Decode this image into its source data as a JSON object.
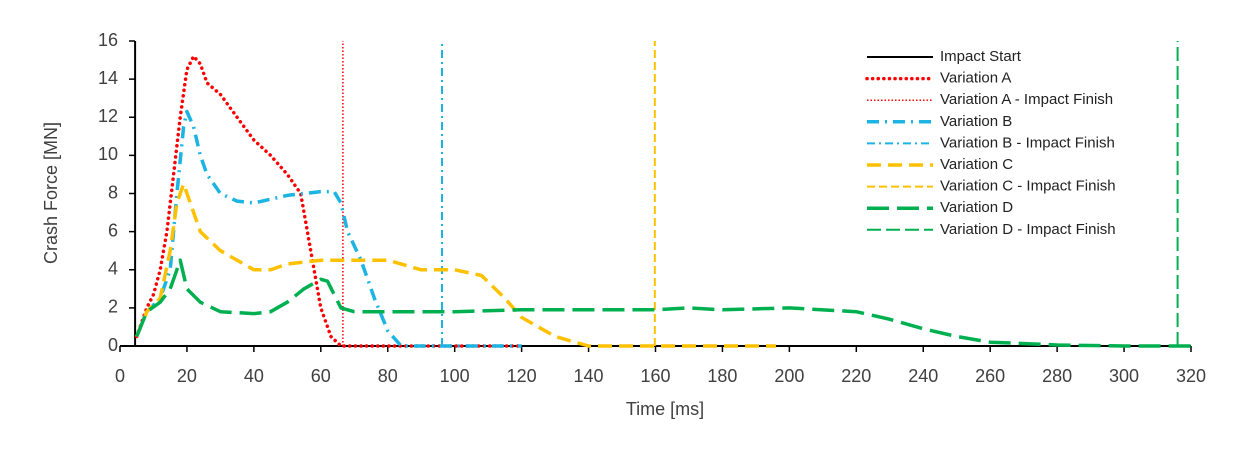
{
  "chart_data": {
    "type": "line",
    "x_label": "Time [ms]",
    "y_label": "Crash Force [MN]",
    "xlim": [
      0,
      320
    ],
    "xticks": [
      0,
      20,
      40,
      60,
      80,
      100,
      120,
      140,
      160,
      180,
      200,
      220,
      240,
      260,
      280,
      300,
      320
    ],
    "ylim": [
      0,
      16
    ],
    "yticks": [
      0,
      2,
      4,
      6,
      8,
      10,
      12,
      14,
      16
    ],
    "grid": false,
    "legend": "right",
    "series": [
      {
        "name": "Impact Start",
        "color": "#000000",
        "dash": "solid",
        "x": [
          4.5,
          4.5
        ],
        "values": [
          0,
          16
        ]
      },
      {
        "name": "Variation A",
        "color": "#ff0000",
        "dash": "round-dot",
        "x": [
          5,
          8,
          10,
          12,
          14,
          16,
          18,
          20,
          22,
          24,
          26,
          28,
          30,
          35,
          40,
          45,
          50,
          54,
          56,
          58,
          60,
          63,
          66,
          80,
          100,
          120
        ],
        "values": [
          0.5,
          2,
          2.7,
          4,
          6,
          9,
          12,
          14.5,
          15.2,
          14.8,
          13.8,
          13.5,
          13.2,
          12,
          10.8,
          10,
          9,
          8,
          6,
          4,
          2,
          0.5,
          0,
          0,
          0,
          0
        ]
      },
      {
        "name": "Variation A - Impact Finish",
        "color": "#ff0000",
        "dash": "fine-dot",
        "x": [
          66.6,
          66.6
        ],
        "values": [
          0,
          16
        ]
      },
      {
        "name": "Variation B",
        "color": "#1cb4e3",
        "dash": "dash-dot",
        "x": [
          5,
          8,
          12,
          15,
          17,
          19,
          20,
          22,
          24,
          26,
          30,
          35,
          40,
          45,
          50,
          55,
          60,
          64,
          66,
          68,
          72,
          76,
          80,
          84,
          100,
          120
        ],
        "values": [
          0.5,
          1.8,
          2.5,
          4,
          8,
          11.5,
          12.3,
          11.5,
          10,
          9,
          8,
          7.6,
          7.5,
          7.7,
          7.9,
          8,
          8.1,
          8.1,
          7.5,
          6,
          4.5,
          2.5,
          0.8,
          0,
          0,
          0
        ]
      },
      {
        "name": "Variation B - Impact Finish",
        "color": "#1cb4e3",
        "dash": "fine-dash-dot",
        "x": [
          96.2,
          96.2
        ],
        "values": [
          0,
          16
        ]
      },
      {
        "name": "Variation C",
        "color": "#ffc000",
        "dash": "dash",
        "x": [
          5,
          8,
          12,
          15,
          17,
          19,
          21,
          24,
          30,
          40,
          45,
          50,
          60,
          70,
          80,
          90,
          100,
          108,
          115,
          120,
          130,
          140,
          160,
          196
        ],
        "values": [
          0.5,
          1.8,
          2.5,
          5,
          7.5,
          8.5,
          7.5,
          6,
          5,
          4,
          4,
          4.3,
          4.5,
          4.5,
          4.5,
          4,
          4,
          3.7,
          2.5,
          1.5,
          0.5,
          0,
          0,
          0
        ]
      },
      {
        "name": "Variation C - Impact Finish",
        "color": "#ffc000",
        "dash": "fine-dash",
        "x": [
          159.8,
          159.8
        ],
        "values": [
          0,
          16
        ]
      },
      {
        "name": "Variation D",
        "color": "#00b050",
        "dash": "long-dash",
        "x": [
          5,
          8,
          12,
          15,
          17,
          18,
          20,
          24,
          30,
          40,
          45,
          50,
          55,
          60,
          62,
          66,
          70,
          80,
          100,
          120,
          140,
          160,
          170,
          180,
          200,
          220,
          230,
          240,
          250,
          260,
          280,
          300,
          320
        ],
        "values": [
          0.5,
          1.8,
          2.3,
          3,
          4,
          4.5,
          3,
          2.3,
          1.8,
          1.7,
          1.8,
          2.3,
          3,
          3.5,
          3.4,
          2,
          1.8,
          1.8,
          1.8,
          1.9,
          1.9,
          1.9,
          2,
          1.9,
          2,
          1.8,
          1.4,
          0.9,
          0.5,
          0.2,
          0.05,
          0,
          0
        ]
      },
      {
        "name": "Variation D - Impact Finish",
        "color": "#00b050",
        "dash": "fine-long-dash",
        "x": [
          316,
          316
        ],
        "values": [
          0,
          16
        ]
      }
    ]
  }
}
